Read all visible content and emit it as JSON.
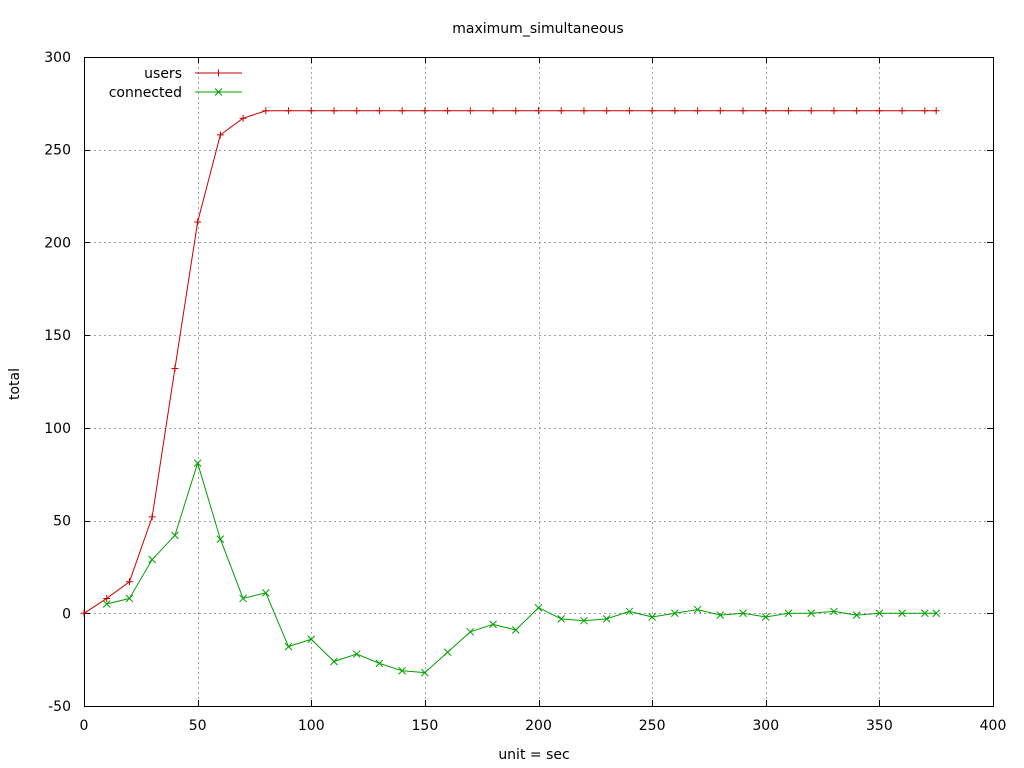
{
  "chart_data": {
    "type": "line",
    "title": "maximum_simultaneous",
    "xlabel": "unit = sec",
    "ylabel": "total",
    "xlim": [
      0,
      400
    ],
    "ylim": [
      -50,
      300
    ],
    "x_ticks": [
      "0",
      "50",
      "100",
      "150",
      "200",
      "250",
      "300",
      "350",
      "400"
    ],
    "y_ticks": [
      "-50",
      "0",
      "50",
      "100",
      "150",
      "200",
      "250",
      "300"
    ],
    "grid": true,
    "legend_position": "top-left",
    "series": [
      {
        "name": "users",
        "color": "#cc0000",
        "marker": "plus",
        "points": [
          [
            0,
            0
          ],
          [
            10,
            8
          ],
          [
            20,
            17
          ],
          [
            30,
            52
          ],
          [
            40,
            132
          ],
          [
            50,
            211
          ],
          [
            60,
            258
          ],
          [
            70,
            267
          ],
          [
            80,
            271
          ],
          [
            90,
            271
          ],
          [
            100,
            271
          ],
          [
            110,
            271
          ],
          [
            120,
            271
          ],
          [
            130,
            271
          ],
          [
            140,
            271
          ],
          [
            150,
            271
          ],
          [
            160,
            271
          ],
          [
            170,
            271
          ],
          [
            180,
            271
          ],
          [
            190,
            271
          ],
          [
            200,
            271
          ],
          [
            210,
            271
          ],
          [
            220,
            271
          ],
          [
            230,
            271
          ],
          [
            240,
            271
          ],
          [
            250,
            271
          ],
          [
            260,
            271
          ],
          [
            270,
            271
          ],
          [
            280,
            271
          ],
          [
            290,
            271
          ],
          [
            300,
            271
          ],
          [
            310,
            271
          ],
          [
            320,
            271
          ],
          [
            330,
            271
          ],
          [
            340,
            271
          ],
          [
            350,
            271
          ],
          [
            360,
            271
          ],
          [
            370,
            271
          ],
          [
            375,
            271
          ]
        ]
      },
      {
        "name": "connected",
        "color": "#00a000",
        "marker": "cross",
        "points": [
          [
            10,
            5
          ],
          [
            20,
            8
          ],
          [
            30,
            29
          ],
          [
            40,
            42
          ],
          [
            50,
            81
          ],
          [
            60,
            40
          ],
          [
            70,
            8
          ],
          [
            80,
            11
          ],
          [
            90,
            -18
          ],
          [
            100,
            -14
          ],
          [
            110,
            -26
          ],
          [
            120,
            -22
          ],
          [
            130,
            -27
          ],
          [
            140,
            -31
          ],
          [
            150,
            -32
          ],
          [
            160,
            -21
          ],
          [
            170,
            -10
          ],
          [
            180,
            -6
          ],
          [
            190,
            -9
          ],
          [
            200,
            3
          ],
          [
            210,
            -3
          ],
          [
            220,
            -4
          ],
          [
            230,
            -3
          ],
          [
            240,
            1
          ],
          [
            250,
            -2
          ],
          [
            260,
            0
          ],
          [
            270,
            2
          ],
          [
            280,
            -1
          ],
          [
            290,
            0
          ],
          [
            300,
            -2
          ],
          [
            310,
            0
          ],
          [
            320,
            0
          ],
          [
            330,
            1
          ],
          [
            340,
            -1
          ],
          [
            350,
            0
          ],
          [
            360,
            0
          ],
          [
            370,
            0
          ],
          [
            375,
            0
          ]
        ]
      }
    ]
  }
}
